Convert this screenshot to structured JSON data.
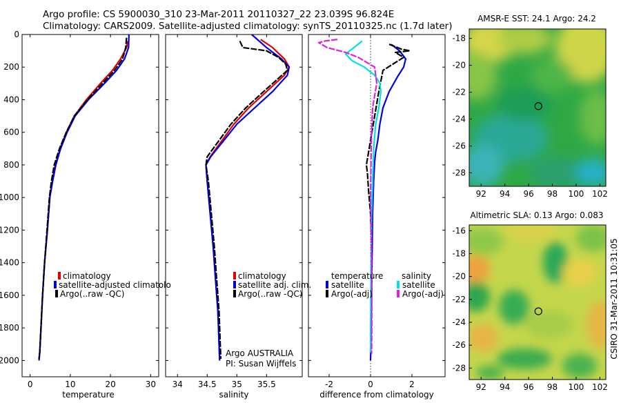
{
  "header": {
    "line1": "Argo profile: CS 5900030_310 23-Mar-2011 20110327_22 23.039S 96.824E",
    "line2": "Climatology: CARS2009. Satellite-adjusted climatology: synTS_20110325.nc (1.7d later)"
  },
  "colors": {
    "red": "#e00000",
    "blue": "#0000e0",
    "black": "#000000",
    "cyan": "#00e0e0",
    "magenta": "#e020e0"
  },
  "chart_data": [
    {
      "id": "temperature",
      "type": "line",
      "title": "",
      "xlabel": "temperature",
      "ylabel": "depth",
      "xlim": [
        -2,
        32
      ],
      "ylim": [
        2100,
        0
      ],
      "xticks": [
        0,
        10,
        20,
        30
      ],
      "yticks": [
        0,
        200,
        400,
        600,
        800,
        1000,
        1200,
        1400,
        1600,
        1800,
        2000
      ],
      "legend": [
        "climatology",
        "satellite-adjusted climatolo",
        "Argo(..raw -QC)"
      ],
      "series": [
        {
          "name": "climatology",
          "color": "red",
          "dash": false,
          "x": [
            24.3,
            24.0,
            22.5,
            20.5,
            17.5,
            14.0,
            11.0,
            9.0,
            7.5,
            6.3,
            5.5,
            4.9,
            4.3,
            3.6,
            3.1,
            2.7,
            2.4,
            2.2
          ],
          "y": [
            40,
            80,
            150,
            220,
            300,
            400,
            500,
            600,
            700,
            800,
            900,
            1000,
            1200,
            1400,
            1600,
            1800,
            1950,
            2000
          ]
        },
        {
          "name": "satellite-adjusted climatology",
          "color": "blue",
          "dash": false,
          "x": [
            24.6,
            24.5,
            23.5,
            21.5,
            18.5,
            14.5,
            11.2,
            9.2,
            7.6,
            6.4,
            5.6,
            4.9,
            4.3,
            3.6,
            3.1,
            2.7,
            2.4,
            2.2
          ],
          "y": [
            0,
            80,
            150,
            220,
            300,
            400,
            500,
            600,
            700,
            800,
            900,
            1000,
            1200,
            1400,
            1600,
            1800,
            1950,
            2000
          ]
        },
        {
          "name": "Argo",
          "color": "black",
          "dash": true,
          "x": [
            24.0,
            23.8,
            23.0,
            21.0,
            18.0,
            14.3,
            11.0,
            9.0,
            7.3,
            6.0,
            5.3,
            4.8,
            4.2,
            3.6,
            3.1,
            2.7,
            2.4,
            2.2
          ],
          "y": [
            20,
            80,
            150,
            220,
            300,
            400,
            500,
            600,
            700,
            800,
            900,
            1000,
            1200,
            1400,
            1600,
            1800,
            1950,
            1990
          ]
        }
      ]
    },
    {
      "id": "salinity",
      "type": "line",
      "title": "",
      "xlabel": "salinity",
      "ylabel": "depth",
      "xlim": [
        33.8,
        36.1
      ],
      "ylim": [
        2100,
        0
      ],
      "xticks": [
        34,
        34.5,
        35,
        35.5
      ],
      "yticks": [
        0,
        200,
        400,
        600,
        800,
        1000,
        1200,
        1400,
        1600,
        1800,
        2000
      ],
      "legend": [
        "climatology",
        "satellite adj. clim.",
        "Argo(..raw -QC)"
      ],
      "annotation": [
        "Argo AUSTRALIA",
        "PI: Susan Wijffels"
      ],
      "series": [
        {
          "name": "climatology",
          "color": "red",
          "dash": false,
          "x": [
            35.4,
            35.6,
            35.8,
            35.88,
            35.8,
            35.5,
            35.2,
            34.95,
            34.75,
            34.55,
            34.48,
            34.5,
            34.55,
            34.6,
            34.64,
            34.68,
            34.7,
            34.71
          ],
          "y": [
            30,
            80,
            150,
            200,
            250,
            350,
            450,
            550,
            650,
            750,
            800,
            900,
            1100,
            1300,
            1500,
            1700,
            1900,
            2000
          ]
        },
        {
          "name": "satellite adj. clim.",
          "color": "blue",
          "dash": false,
          "x": [
            35.25,
            35.5,
            35.75,
            35.88,
            35.85,
            35.6,
            35.3,
            35.0,
            34.78,
            34.56,
            34.48,
            34.5,
            34.55,
            34.6,
            34.64,
            34.68,
            34.7,
            34.71
          ],
          "y": [
            0,
            80,
            150,
            200,
            250,
            350,
            450,
            550,
            650,
            750,
            800,
            900,
            1100,
            1300,
            1500,
            1700,
            1900,
            2000
          ]
        },
        {
          "name": "Argo",
          "color": "black",
          "dash": true,
          "x": [
            35.05,
            35.1,
            35.5,
            35.7,
            35.82,
            35.85,
            35.45,
            35.15,
            34.9,
            34.7,
            34.5,
            34.48,
            34.52,
            34.57,
            34.62,
            34.66,
            34.7,
            34.72,
            34.73
          ],
          "y": [
            40,
            80,
            100,
            140,
            180,
            220,
            350,
            450,
            550,
            650,
            750,
            800,
            900,
            1100,
            1300,
            1500,
            1700,
            1900,
            1990
          ]
        }
      ]
    },
    {
      "id": "difference",
      "type": "line",
      "title": "",
      "xlabel": "difference from climatology",
      "ylabel": "depth",
      "xlim": [
        -3,
        3.6
      ],
      "ylim": [
        2100,
        0
      ],
      "xticks": [
        -2,
        0,
        2
      ],
      "yticks": [
        0,
        200,
        400,
        600,
        800,
        1000,
        1200,
        1400,
        1600,
        1800,
        2000
      ],
      "legend_groups": [
        "temperature",
        "salinity"
      ],
      "legend": [
        "satellite",
        "Argo(-adj)",
        "satellite",
        "Argo(-adj)"
      ],
      "series": [
        {
          "name": "temperature satellite",
          "color": "blue",
          "dash": false,
          "x": [
            1.0,
            1.4,
            1.7,
            1.6,
            1.3,
            0.9,
            0.6,
            0.45,
            0.35,
            0.25,
            0.2,
            0.15,
            0.1,
            0.08,
            0.06,
            0.04,
            0.02,
            0.0
          ],
          "y": [
            60,
            100,
            150,
            200,
            260,
            350,
            450,
            550,
            650,
            720,
            780,
            900,
            1100,
            1300,
            1500,
            1700,
            1900,
            2000
          ]
        },
        {
          "name": "temperature Argo",
          "color": "black",
          "dash": true,
          "x": [
            0.9,
            1.2,
            1.5,
            1.9,
            1.2,
            1.6,
            0.6,
            0.4,
            0.2,
            0.0,
            -0.2,
            -0.15,
            -0.1,
            0.0,
            0.05,
            0.05,
            0.02,
            0.0
          ],
          "y": [
            60,
            75,
            90,
            100,
            110,
            140,
            220,
            350,
            500,
            650,
            800,
            850,
            950,
            1100,
            1300,
            1500,
            1700,
            1950
          ]
        },
        {
          "name": "salinity satellite",
          "color": "cyan",
          "dash": false,
          "x": [
            -0.4,
            -0.8,
            -1.2,
            -0.9,
            -0.3,
            0.2,
            0.45,
            0.5,
            0.4,
            0.25,
            0.15,
            0.1,
            0.05,
            0.03,
            0.02,
            0.01,
            0.0
          ],
          "y": [
            40,
            80,
            120,
            160,
            200,
            250,
            300,
            350,
            450,
            550,
            700,
            900,
            1100,
            1300,
            1500,
            1700,
            1950
          ]
        },
        {
          "name": "salinity Argo",
          "color": "magenta",
          "dash": true,
          "x": [
            -1.6,
            -2.2,
            -2.5,
            -2.1,
            -1.2,
            -0.6,
            -0.2,
            0.2,
            0.3,
            0.1,
            0.05,
            0.02,
            0.0,
            0.03,
            0.05,
            0.06,
            0.06,
            0.05
          ],
          "y": [
            30,
            40,
            50,
            80,
            110,
            140,
            170,
            200,
            300,
            450,
            600,
            800,
            1000,
            1200,
            1400,
            1600,
            1800,
            1960
          ]
        }
      ]
    },
    {
      "id": "sst_map",
      "type": "heatmap",
      "title": "AMSR-E SST: 24.1 Argo: 24.2",
      "xlim": [
        91,
        102.5
      ],
      "ylim": [
        -29,
        -17.3
      ],
      "xticks": [
        92,
        94,
        96,
        98,
        100,
        102
      ],
      "yticks": [
        -18,
        -20,
        -22,
        -24,
        -26,
        -28
      ],
      "marker": {
        "lon": 96.824,
        "lat": -23.039
      }
    },
    {
      "id": "sla_map",
      "type": "heatmap",
      "title": "Altimetric SLA: 0.13 Argo: 0.083",
      "xlim": [
        91,
        102.5
      ],
      "ylim": [
        -29,
        -15.5
      ],
      "xticks": [
        92,
        94,
        96,
        98,
        100,
        102
      ],
      "yticks": [
        -16,
        -18,
        -20,
        -22,
        -24,
        -26,
        -28
      ],
      "marker": {
        "lon": 96.824,
        "lat": -23.039
      }
    }
  ],
  "footer": {
    "side_label": "CSIRO 31-Mar-2011 10:31:05"
  }
}
